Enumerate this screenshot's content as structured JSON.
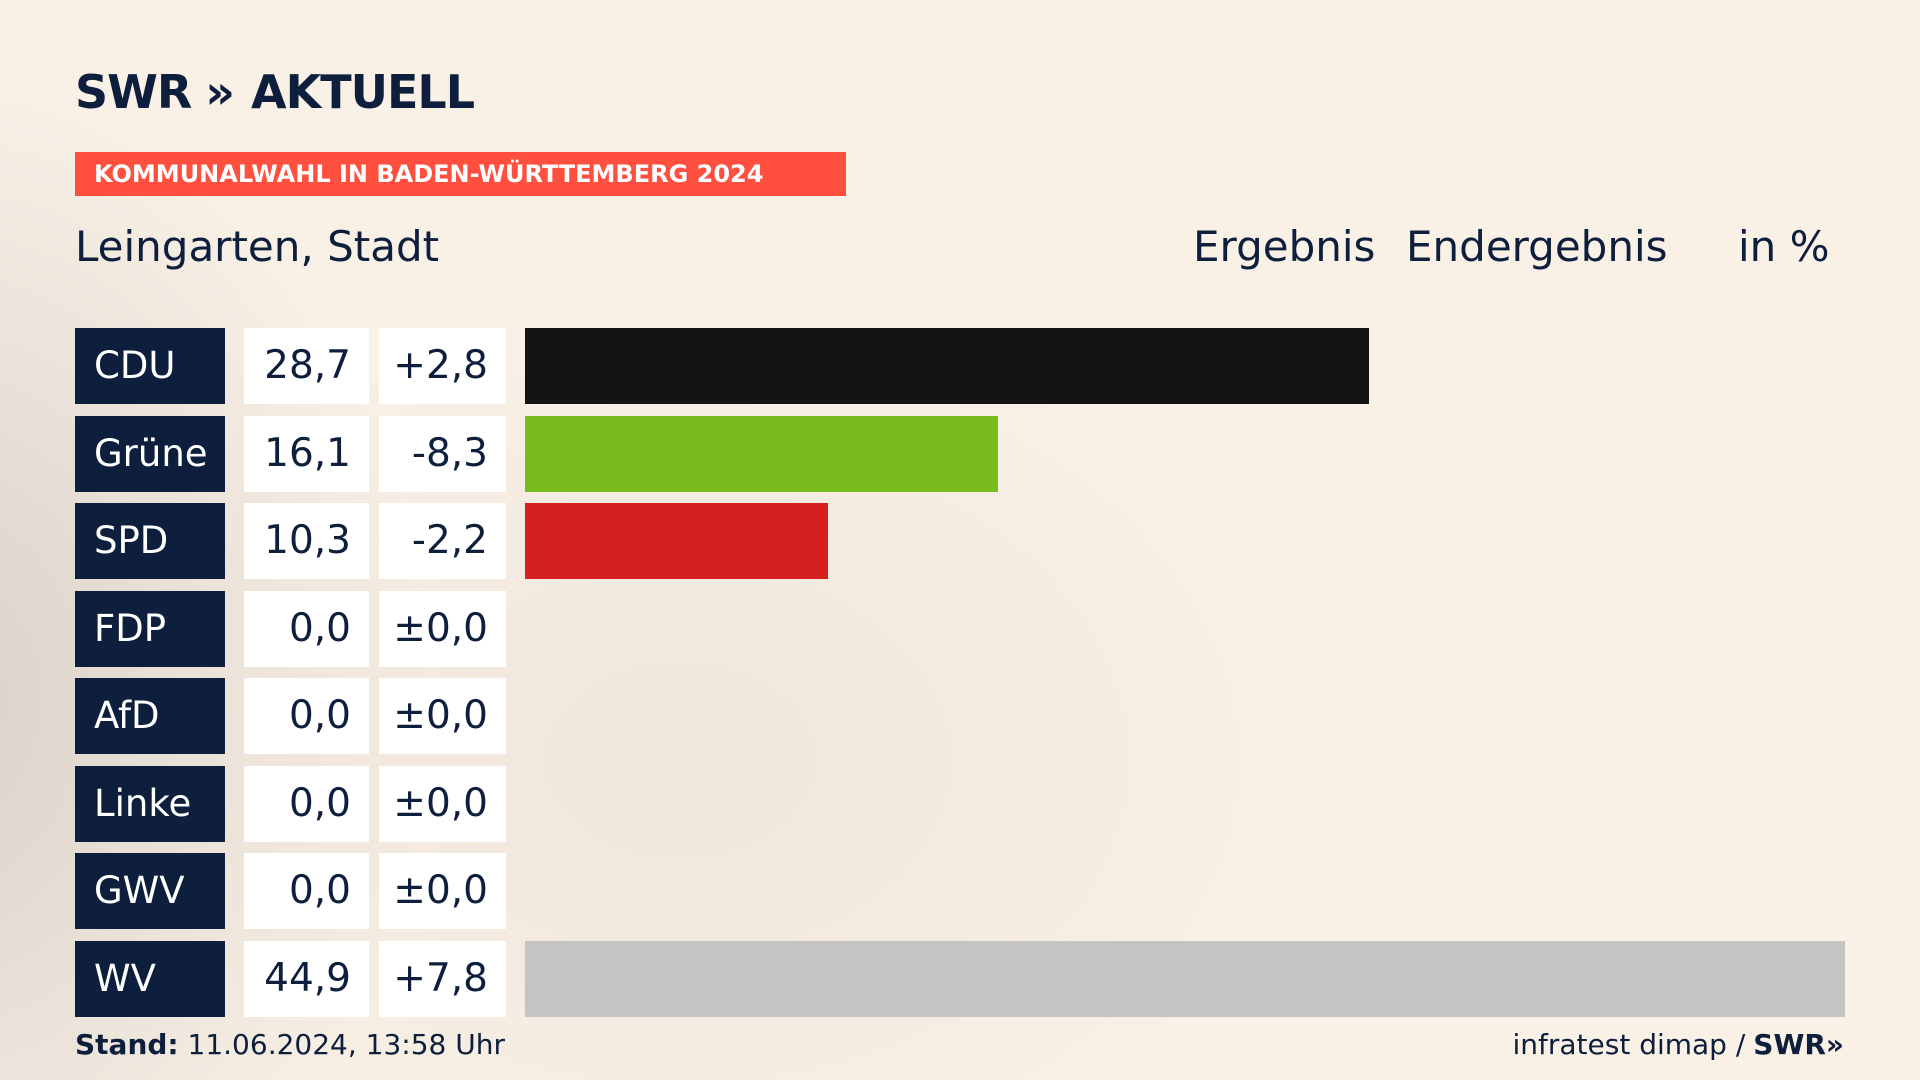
{
  "brand": {
    "logo_text": "SWR",
    "logo_chevrons": "»",
    "logo_suffix": "AKTUELL"
  },
  "banner": {
    "text": "KOMMUNALWAHL IN BADEN-WÜRTTEMBERG 2024",
    "color": "#ff4f3f"
  },
  "header": {
    "place": "Leingarten, Stadt",
    "result_label": "Ergebnis",
    "status_label": "Endergebnis",
    "unit_label": "in %"
  },
  "chart_data": {
    "type": "bar",
    "orientation": "horizontal",
    "categories": [
      "CDU",
      "Grüne",
      "SPD",
      "FDP",
      "AfD",
      "Linke",
      "GWV",
      "WV"
    ],
    "values": [
      28.7,
      16.1,
      10.3,
      0.0,
      0.0,
      0.0,
      0.0,
      44.9
    ],
    "value_labels": [
      "28,7",
      "16,1",
      "10,3",
      "0,0",
      "0,0",
      "0,0",
      "0,0",
      "44,9"
    ],
    "diff_labels": [
      "+2,8",
      "-8,3",
      "-2,2",
      "±0,0",
      "±0,0",
      "±0,0",
      "±0,0",
      "+7,8"
    ],
    "colors": [
      "#141414",
      "#78bc1e",
      "#d62020",
      "#f5e100",
      "#1aa1e0",
      "#b5275e",
      "#9e9e9e",
      "#c4c4c4"
    ],
    "xlim": [
      0,
      44.9
    ]
  },
  "footer": {
    "stand_label": "Stand:",
    "stand_value": "11.06.2024, 13:58 Uhr",
    "source": "infratest dimap /",
    "source_brand": "SWR»"
  }
}
